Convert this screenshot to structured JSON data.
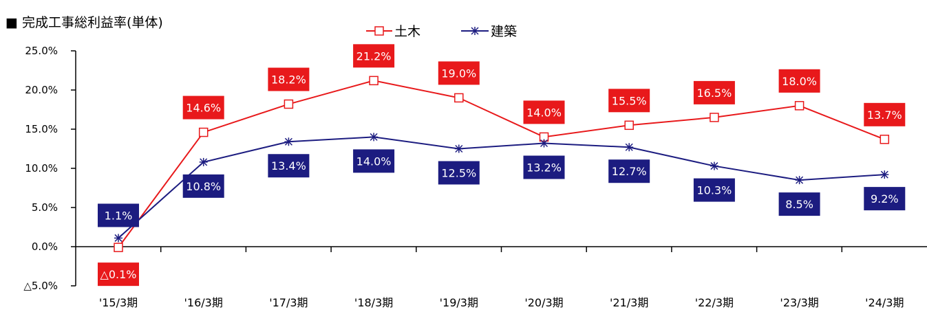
{
  "title": "■ 完成工事総利益率(単体)",
  "chart_data": {
    "type": "line",
    "title": "■ 完成工事総利益率(単体)",
    "categories": [
      "'15/3期",
      "'16/3期",
      "'17/3期",
      "'18/3期",
      "'19/3期",
      "'20/3期",
      "'21/3期",
      "'22/3期",
      "'23/3期",
      "'24/3期"
    ],
    "series": [
      {
        "name": "土木",
        "color": "#e8191b",
        "marker": "square",
        "values": [
          -0.1,
          14.6,
          18.2,
          21.2,
          19.0,
          14.0,
          15.5,
          16.5,
          18.0,
          13.7
        ],
        "labels": [
          "△0.1%",
          "14.6%",
          "18.2%",
          "21.2%",
          "19.0%",
          "14.0%",
          "15.5%",
          "16.5%",
          "18.0%",
          "13.7%"
        ]
      },
      {
        "name": "建築",
        "color": "#1c1c80",
        "marker": "asterisk",
        "values": [
          1.1,
          10.8,
          13.4,
          14.0,
          12.5,
          13.2,
          12.7,
          10.3,
          8.5,
          9.2
        ],
        "labels": [
          "1.1%",
          "10.8%",
          "13.4%",
          "14.0%",
          "12.5%",
          "13.2%",
          "12.7%",
          "10.3%",
          "8.5%",
          "9.2%"
        ]
      }
    ],
    "ylim": [
      -5,
      25
    ],
    "yticks": [
      25,
      20,
      15,
      10,
      5,
      0,
      -5
    ],
    "ytick_labels": [
      "25.0%",
      "20.0%",
      "15.0%",
      "10.0%",
      "5.0%",
      "0.0%",
      "△5.0%"
    ],
    "legend_position": "top-center",
    "grid": false
  }
}
